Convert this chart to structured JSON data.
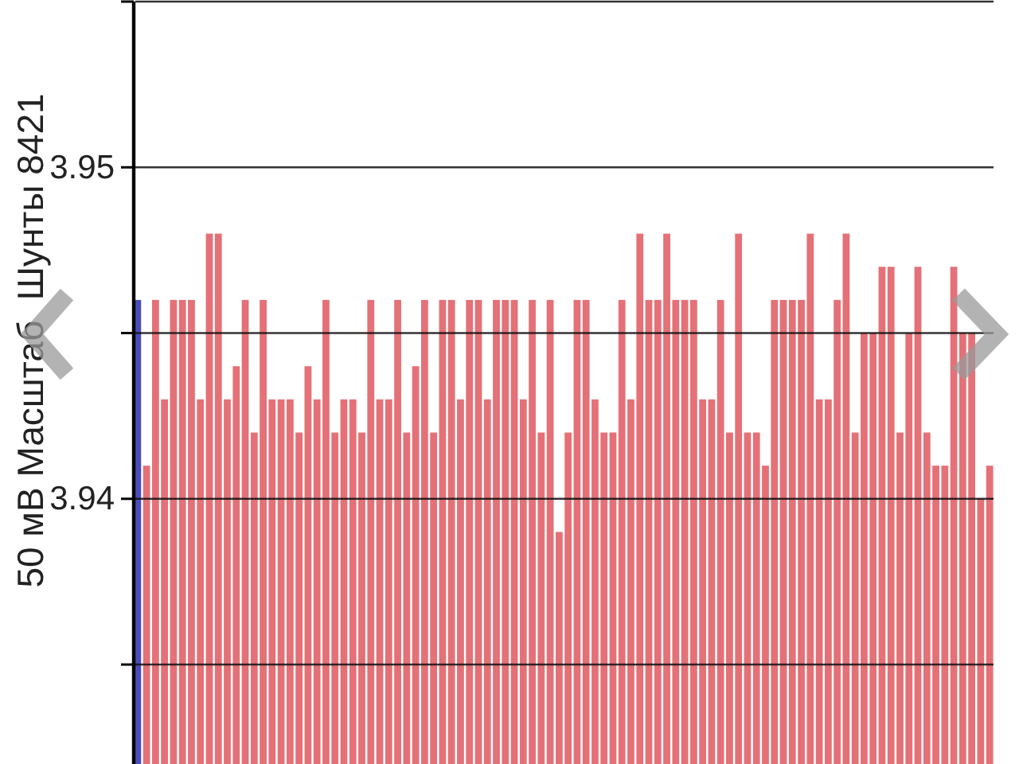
{
  "chart_data": {
    "type": "bar",
    "ylabel": "50 мВ Масштаб  Шунты 8421",
    "categories": [
      null,
      null,
      null,
      null,
      null,
      null,
      null,
      null,
      null,
      null,
      null,
      null,
      null,
      null,
      null,
      null,
      null,
      null,
      null,
      null,
      null,
      null,
      null,
      null,
      null,
      null,
      null,
      null,
      null,
      null,
      null,
      null,
      null,
      null,
      null,
      null,
      null,
      null,
      null,
      null,
      null,
      null,
      null,
      null,
      null,
      null,
      null,
      null,
      null,
      null,
      null,
      null,
      null,
      null,
      null,
      null,
      null,
      null,
      null,
      null,
      null,
      null,
      null,
      null,
      null,
      null,
      null,
      null,
      null,
      null,
      null,
      null,
      null,
      null,
      null,
      null,
      null,
      null,
      null,
      null,
      null,
      null,
      null,
      null,
      null,
      null,
      null,
      null,
      null,
      null,
      null,
      null,
      null,
      null,
      null,
      null
    ],
    "values": [
      3.946,
      3.941,
      3.946,
      3.943,
      3.946,
      3.946,
      3.946,
      3.943,
      3.948,
      3.948,
      3.943,
      3.944,
      3.946,
      3.942,
      3.946,
      3.943,
      3.943,
      3.943,
      3.942,
      3.944,
      3.943,
      3.946,
      3.942,
      3.943,
      3.943,
      3.942,
      3.946,
      3.943,
      3.943,
      3.946,
      3.942,
      3.944,
      3.946,
      3.942,
      3.946,
      3.946,
      3.943,
      3.946,
      3.946,
      3.943,
      3.946,
      3.946,
      3.946,
      3.943,
      3.946,
      3.942,
      3.946,
      3.939,
      3.942,
      3.946,
      3.946,
      3.943,
      3.942,
      3.942,
      3.946,
      3.943,
      3.948,
      3.946,
      3.946,
      3.948,
      3.946,
      3.946,
      3.946,
      3.943,
      3.943,
      3.946,
      3.942,
      3.948,
      3.942,
      3.942,
      3.941,
      3.946,
      3.946,
      3.946,
      3.946,
      3.948,
      3.943,
      3.943,
      3.946,
      3.948,
      3.942,
      3.945,
      3.945,
      3.947,
      3.947,
      3.942,
      3.945,
      3.947,
      3.942,
      3.941,
      3.941,
      3.947,
      3.945,
      3.945,
      3.94,
      3.941
    ],
    "colors": [
      "#3b3db5",
      "#e2656b",
      "#e2656b",
      "#e2656b",
      "#e2656b",
      "#e2656b",
      "#e2656b",
      "#e2656b",
      "#e2656b",
      "#e2656b",
      "#e2656b",
      "#e2656b",
      "#e2656b",
      "#e2656b",
      "#e2656b",
      "#e2656b",
      "#e2656b",
      "#e2656b",
      "#e2656b",
      "#e2656b",
      "#e2656b",
      "#e2656b",
      "#e2656b",
      "#e2656b",
      "#e2656b",
      "#e2656b",
      "#e2656b",
      "#e2656b",
      "#e2656b",
      "#e2656b",
      "#e2656b",
      "#e2656b",
      "#e2656b",
      "#e2656b",
      "#e2656b",
      "#e2656b",
      "#e2656b",
      "#e2656b",
      "#e2656b",
      "#e2656b",
      "#e2656b",
      "#e2656b",
      "#e2656b",
      "#e2656b",
      "#e2656b",
      "#e2656b",
      "#e2656b",
      "#e2656b",
      "#e2656b",
      "#e2656b",
      "#e2656b",
      "#e2656b",
      "#e2656b",
      "#e2656b",
      "#e2656b",
      "#e2656b",
      "#e2656b",
      "#e2656b",
      "#e2656b",
      "#e2656b",
      "#e2656b",
      "#e2656b",
      "#e2656b",
      "#e2656b",
      "#e2656b",
      "#e2656b",
      "#e2656b",
      "#e2656b",
      "#e2656b",
      "#e2656b",
      "#e2656b",
      "#e2656b",
      "#e2656b",
      "#e2656b",
      "#e2656b",
      "#e2656b",
      "#e2656b",
      "#e2656b",
      "#e2656b",
      "#e2656b",
      "#e2656b",
      "#e2656b",
      "#e2656b",
      "#e2656b",
      "#e2656b",
      "#e2656b",
      "#e2656b",
      "#e2656b",
      "#e2656b",
      "#e2656b",
      "#e2656b",
      "#e2656b",
      "#e2656b",
      "#e2656b",
      "#e2656b",
      "#e2656b"
    ],
    "ylim": [
      3.932,
      3.955
    ],
    "yticks": [
      {
        "value": 3.955,
        "label": null
      },
      3.95,
      {
        "value": 3.945,
        "label": null
      },
      3.94,
      {
        "value": 3.935,
        "label": null
      }
    ],
    "grid": "y",
    "tick_labels": "y"
  }
}
